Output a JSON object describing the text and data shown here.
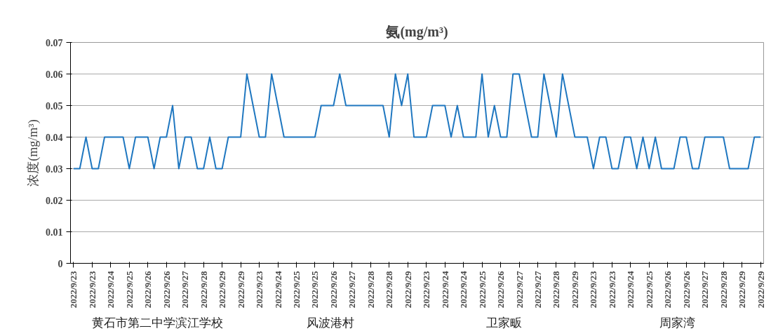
{
  "chart_data": {
    "type": "line",
    "title": "氨(mg/m³)",
    "ylabel": "浓度(mg/m³)",
    "categories": [
      "2022/9/23",
      null,
      null,
      "2022/9/23",
      null,
      null,
      "2022/9/24",
      null,
      null,
      "2022/9/25",
      null,
      null,
      "2022/9/26",
      null,
      null,
      "2022/9/26",
      null,
      null,
      "2022/9/27",
      null,
      null,
      "2022/9/28",
      null,
      null,
      "2022/9/29",
      null,
      null,
      "2022/9/29",
      null,
      null,
      "2022/9/23",
      null,
      null,
      "2022/9/24",
      null,
      null,
      "2022/9/25",
      null,
      null,
      "2022/9/25",
      null,
      null,
      "2022/9/26",
      null,
      null,
      "2022/9/27",
      null,
      null,
      "2022/9/28",
      null,
      null,
      "2022/9/28",
      null,
      null,
      "2022/9/29",
      null,
      null,
      "2022/9/23",
      null,
      null,
      "2022/9/24",
      null,
      null,
      "2022/9/24",
      null,
      null,
      "2022/9/25",
      null,
      null,
      "2022/9/26",
      null,
      null,
      "2022/9/27",
      null,
      null,
      "2022/9/27",
      null,
      null,
      "2022/9/28",
      null,
      null,
      "2022/9/29",
      null,
      null,
      "2022/9/23",
      null,
      null,
      "2022/9/23",
      null,
      null,
      "2022/9/24",
      null,
      null,
      "2022/9/25",
      null,
      null,
      "2022/9/26",
      null,
      null,
      "2022/9/26",
      null,
      null,
      "2022/9/27",
      null,
      null,
      "2022/9/28",
      null,
      null,
      "2022/9/29",
      null,
      null,
      "2022/9/29"
    ],
    "series": [
      {
        "color": "#1f77c0",
        "values": [
          0.03,
          0.03,
          0.04,
          0.03,
          0.03,
          0.04,
          0.04,
          0.04,
          0.04,
          0.03,
          0.04,
          0.04,
          0.04,
          0.03,
          0.04,
          0.04,
          0.05,
          0.03,
          0.04,
          0.04,
          0.03,
          0.03,
          0.04,
          0.03,
          0.03,
          0.04,
          0.04,
          0.04,
          0.06,
          0.05,
          0.04,
          0.04,
          0.06,
          0.05,
          0.04,
          0.04,
          0.04,
          0.04,
          0.04,
          0.04,
          0.05,
          0.05,
          0.05,
          0.06,
          0.05,
          0.05,
          0.05,
          0.05,
          0.05,
          0.05,
          0.05,
          0.04,
          0.06,
          0.05,
          0.06,
          0.04,
          0.04,
          0.04,
          0.05,
          0.05,
          0.05,
          0.04,
          0.05,
          0.04,
          0.04,
          0.04,
          0.06,
          0.04,
          0.05,
          0.04,
          0.04,
          0.06,
          0.06,
          0.05,
          0.04,
          0.04,
          0.06,
          0.05,
          0.04,
          0.06,
          0.05,
          0.04,
          0.04,
          0.04,
          0.03,
          0.04,
          0.04,
          0.03,
          0.03,
          0.04,
          0.04,
          0.03,
          0.04,
          0.03,
          0.04,
          0.03,
          0.03,
          0.03,
          0.04,
          0.04,
          0.03,
          0.03,
          0.04,
          0.04,
          0.04,
          0.04,
          0.03,
          0.03,
          0.03,
          0.03,
          0.04,
          0.04
        ]
      }
    ],
    "ylim": [
      0,
      0.07
    ],
    "yticks": [
      0,
      0.01,
      0.02,
      0.03,
      0.04,
      0.05,
      0.06,
      0.07
    ],
    "grid": "y",
    "marker": "none",
    "line_style": "solid",
    "annotations": [
      "黄石市第二中学滨江学校",
      "风波港村",
      "卫家畈",
      "周家湾"
    ]
  }
}
